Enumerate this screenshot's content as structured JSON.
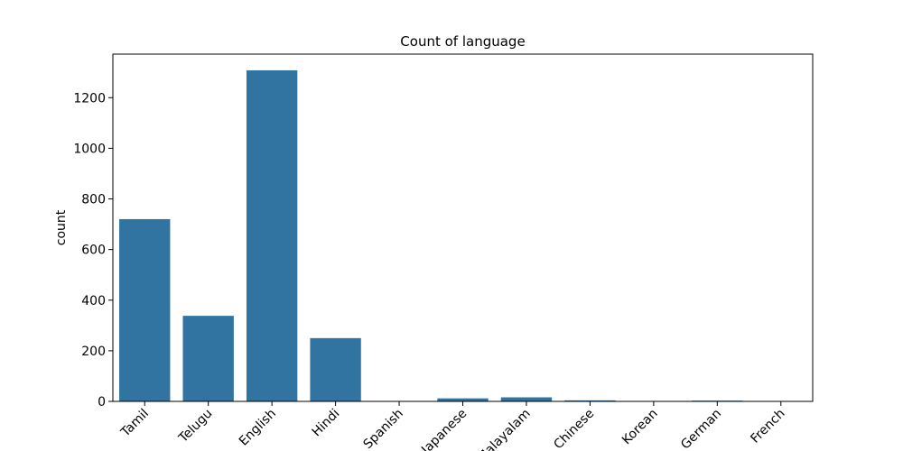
{
  "chart_data": {
    "type": "bar",
    "title": "Count of language",
    "xlabel": "",
    "ylabel": "count",
    "categories": [
      "Tamil",
      "Telugu",
      "English",
      "Hindi",
      "Spanish",
      "Japanese",
      "Malayalam",
      "Chinese",
      "Korean",
      "German",
      "French"
    ],
    "values": [
      720,
      338,
      1308,
      250,
      1,
      12,
      16,
      4,
      1,
      3,
      1
    ],
    "ylim": [
      0,
      1372
    ],
    "yticks": [
      0,
      200,
      400,
      600,
      800,
      1000,
      1200
    ],
    "bar_color": "#3274a1",
    "grid": false,
    "legend": false
  }
}
